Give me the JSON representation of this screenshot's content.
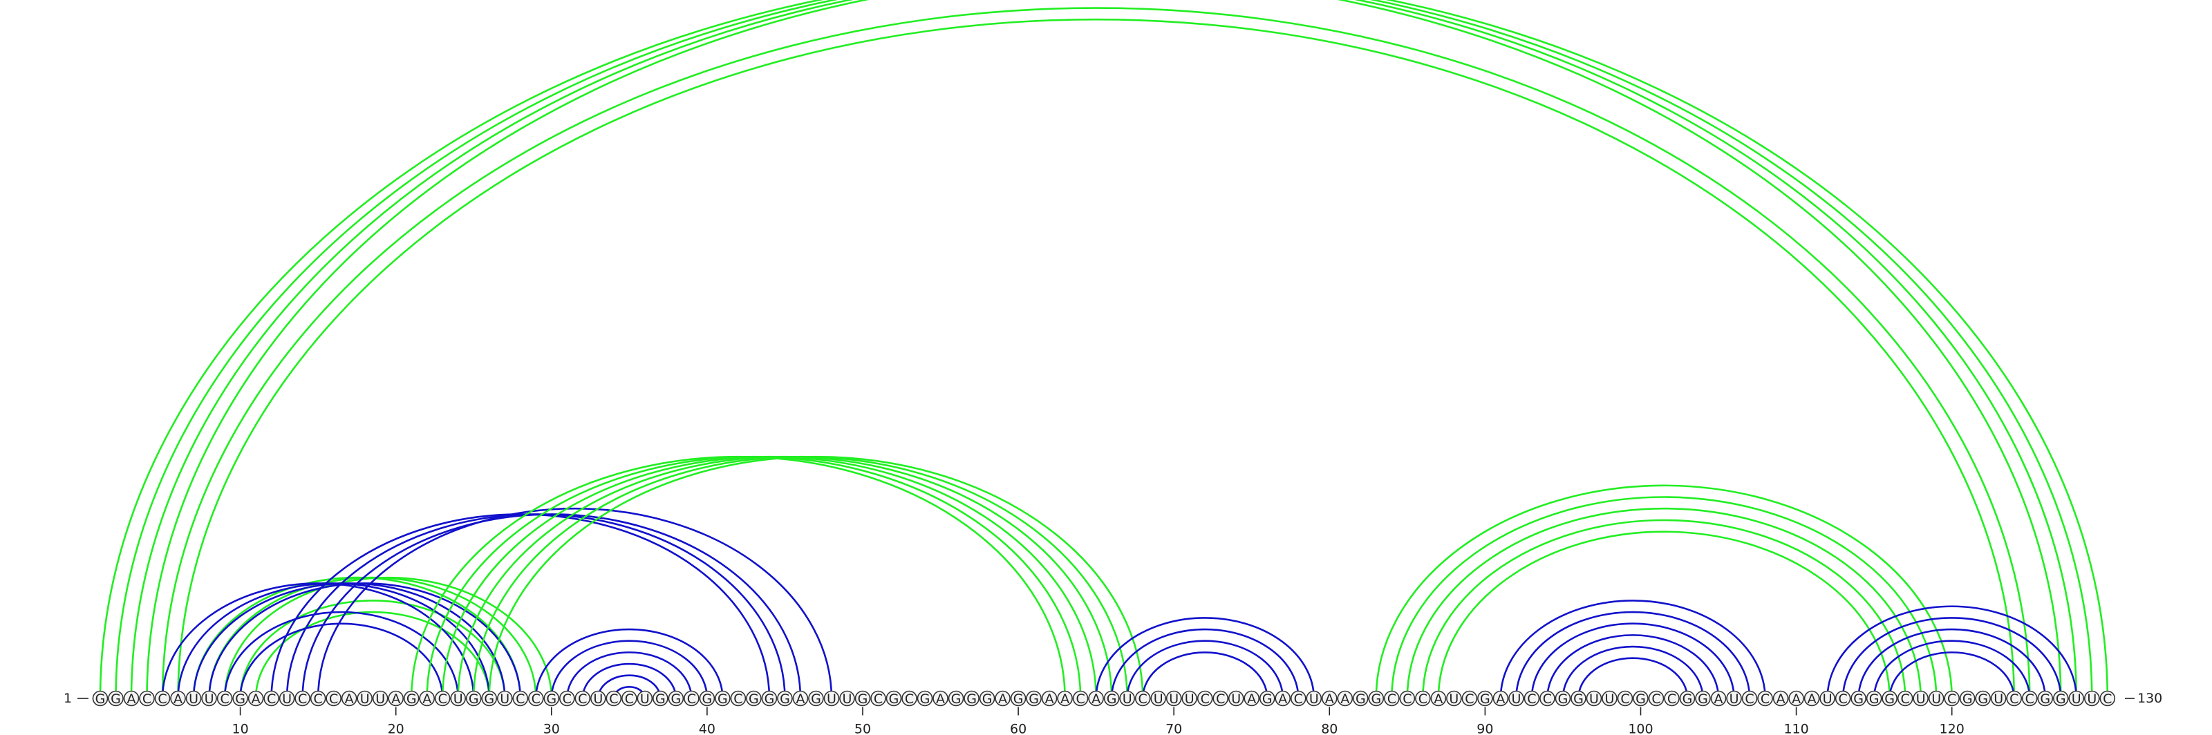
{
  "sequence": "GGACCAUUCGACUCCCAUUAGACUGGUCCGCCUCCUGGCGGCGGGAGUUGCGCGAGGGAGGAACAGUCUUUCCUAGACUAAGGCCCAUCGAUCCGGUUCGCCGGAUCCAAAUCGGGCUUCGGUCCGGUUC",
  "start_label": "1",
  "end_label": "130",
  "tick_labels": [
    "10",
    "20",
    "30",
    "40",
    "50",
    "60",
    "70",
    "80",
    "90",
    "100",
    "110",
    "120"
  ],
  "colors": {
    "green": "#22ee22",
    "blue": "#1111cc"
  },
  "arc_groups": [
    {
      "color": "green",
      "from": [
        1,
        2,
        3,
        4,
        5,
        6
      ],
      "to": [
        127,
        128,
        129,
        130,
        125,
        124
      ]
    },
    {
      "color": "green",
      "from": [
        7,
        8,
        9,
        10,
        11
      ],
      "to": [
        28,
        29,
        30,
        27,
        26
      ]
    },
    {
      "color": "blue",
      "from": [
        5,
        6,
        7,
        8,
        9,
        10
      ],
      "to": [
        25,
        26,
        27,
        28,
        24,
        23
      ]
    },
    {
      "color": "blue",
      "from": [
        12,
        13,
        14,
        15
      ],
      "to": [
        44,
        45,
        46,
        48
      ]
    },
    {
      "color": "green",
      "from": [
        21,
        22,
        23,
        24,
        25,
        26
      ],
      "to": [
        63,
        64,
        65,
        66,
        67,
        68
      ]
    },
    {
      "color": "blue",
      "from": [
        29,
        30,
        31,
        32,
        33,
        34
      ],
      "to": [
        41,
        40,
        39,
        38,
        37,
        36
      ]
    },
    {
      "color": "blue",
      "from": [
        65,
        66,
        67,
        68
      ],
      "to": [
        79,
        78,
        77,
        76
      ]
    },
    {
      "color": "green",
      "from": [
        83,
        84,
        85,
        86,
        87
      ],
      "to": [
        120,
        119,
        118,
        117,
        116
      ]
    },
    {
      "color": "blue",
      "from": [
        91,
        92,
        93,
        94,
        95,
        96
      ],
      "to": [
        108,
        107,
        106,
        105,
        104,
        103
      ]
    },
    {
      "color": "blue",
      "from": [
        112,
        113,
        114,
        115,
        116
      ],
      "to": [
        128,
        127,
        126,
        125,
        124
      ]
    }
  ]
}
